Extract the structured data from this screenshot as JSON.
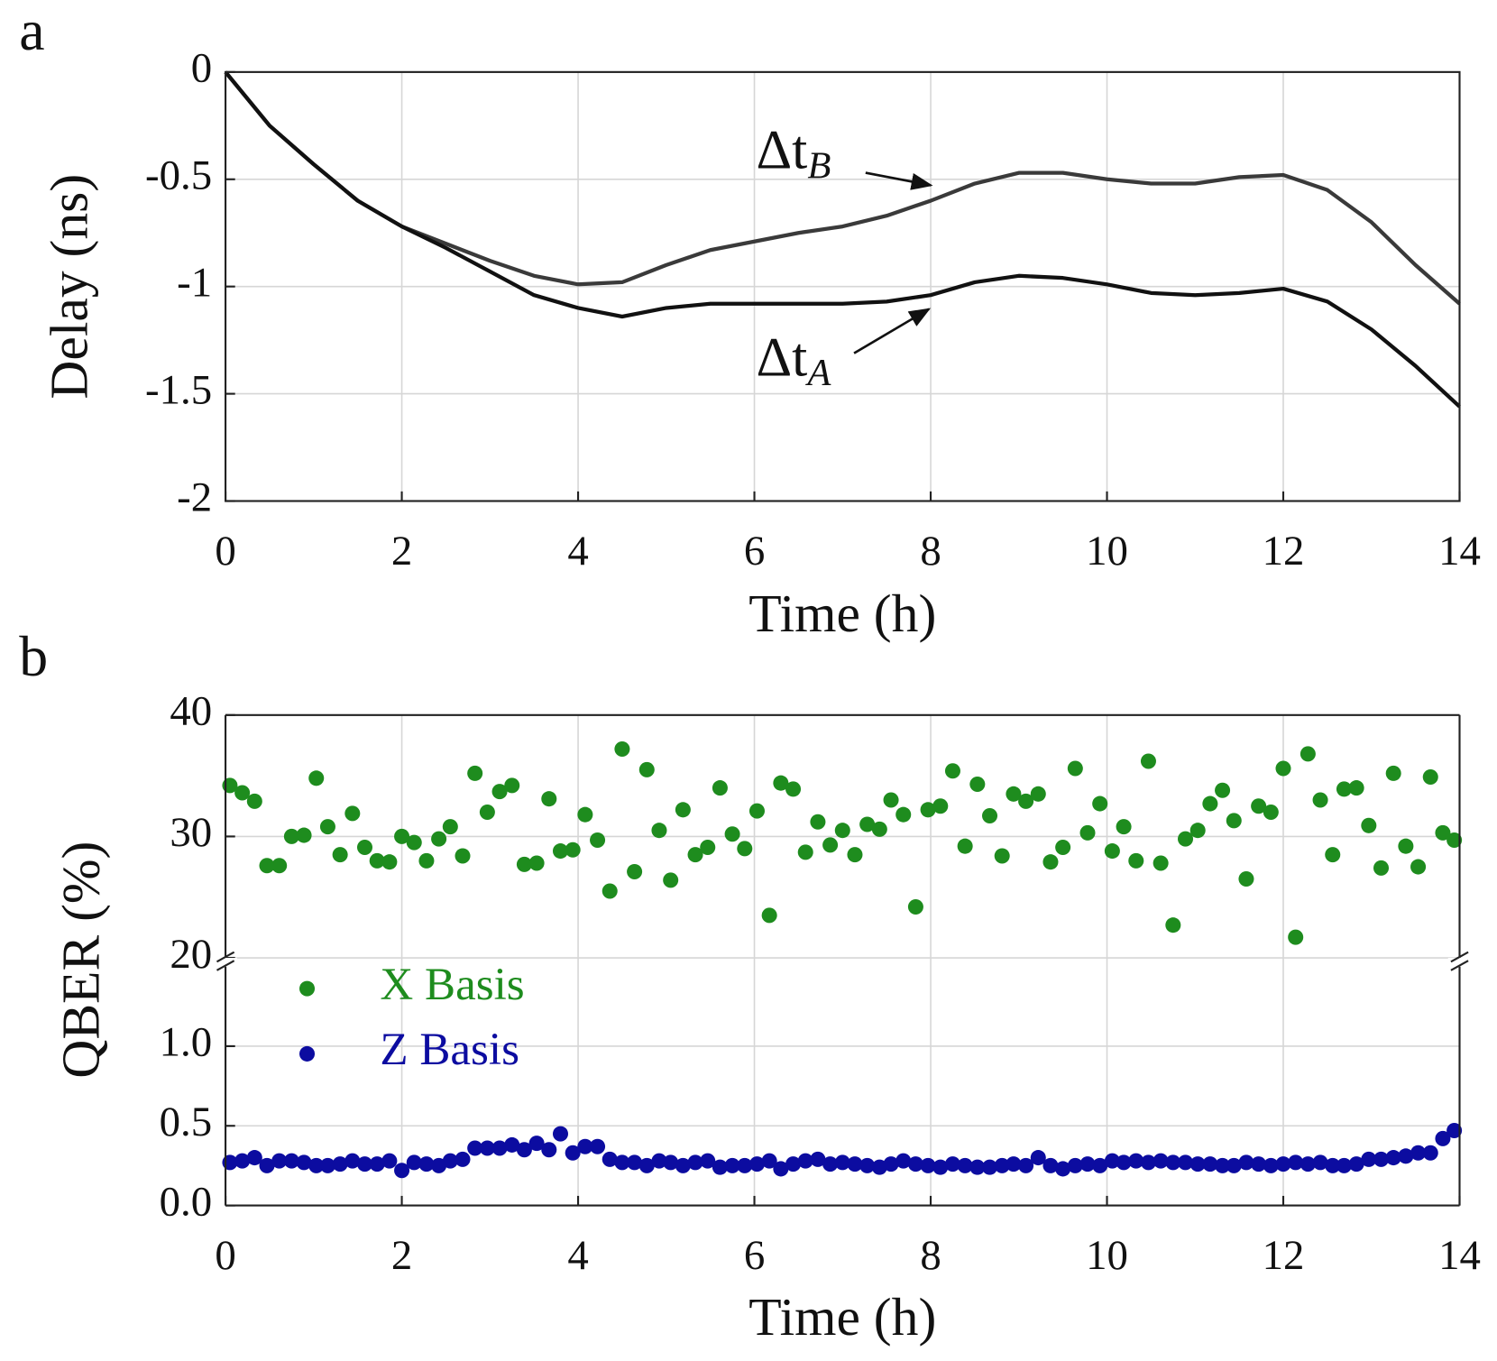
{
  "chart_data": [
    {
      "type": "line",
      "panel_label": "a",
      "xlabel": "Time (h)",
      "ylabel": "Delay (ns)",
      "x": [
        0,
        0.5,
        1,
        1.5,
        2,
        2.5,
        3,
        3.5,
        4,
        4.5,
        5,
        5.5,
        6,
        6.5,
        7,
        7.5,
        8,
        8.5,
        9,
        9.5,
        10,
        10.5,
        11,
        11.5,
        12,
        12.5,
        13,
        13.5,
        14
      ],
      "series": [
        {
          "name": "B",
          "color": "#3a3a3a",
          "values": [
            0,
            -0.25,
            -0.43,
            -0.6,
            -0.72,
            -0.8,
            -0.88,
            -0.95,
            -0.99,
            -0.98,
            -0.9,
            -0.83,
            -0.79,
            -0.75,
            -0.72,
            -0.67,
            -0.6,
            -0.52,
            -0.47,
            -0.47,
            -0.5,
            -0.52,
            -0.52,
            -0.49,
            -0.48,
            -0.55,
            -0.7,
            -0.9,
            -1.08
          ]
        },
        {
          "name": "A",
          "color": "#111111",
          "values": [
            0,
            -0.25,
            -0.43,
            -0.6,
            -0.72,
            -0.82,
            -0.93,
            -1.04,
            -1.1,
            -1.14,
            -1.1,
            -1.08,
            -1.08,
            -1.08,
            -1.08,
            -1.07,
            -1.04,
            -0.98,
            -0.95,
            -0.96,
            -0.99,
            -1.03,
            -1.04,
            -1.03,
            -1.01,
            -1.07,
            -1.2,
            -1.37,
            -1.56
          ]
        }
      ],
      "annotations": [
        {
          "text": "Δt",
          "sub": "B"
        },
        {
          "text": "Δt",
          "sub": "A"
        }
      ],
      "xlim": [
        0,
        14
      ],
      "xticks": [
        0,
        2,
        4,
        6,
        8,
        10,
        12,
        14
      ],
      "ylim": [
        -2,
        0
      ],
      "yticks": [
        0,
        -0.5,
        -1,
        -1.5,
        -2
      ],
      "grid": true
    },
    {
      "type": "scatter",
      "panel_label": "b",
      "xlabel": "Time (h)",
      "ylabel": "QBER (%)",
      "x": [
        0.05,
        0.19,
        0.33,
        0.47,
        0.61,
        0.75,
        0.89,
        1.03,
        1.16,
        1.3,
        1.44,
        1.58,
        1.72,
        1.86,
        2,
        2.14,
        2.28,
        2.42,
        2.55,
        2.69,
        2.83,
        2.97,
        3.11,
        3.25,
        3.39,
        3.53,
        3.67,
        3.8,
        3.94,
        4.08,
        4.22,
        4.36,
        4.5,
        4.64,
        4.78,
        4.92,
        5.05,
        5.19,
        5.33,
        5.47,
        5.61,
        5.75,
        5.89,
        6.03,
        6.17,
        6.3,
        6.44,
        6.58,
        6.72,
        6.86,
        7,
        7.14,
        7.28,
        7.42,
        7.55,
        7.69,
        7.83,
        7.97,
        8.11,
        8.25,
        8.39,
        8.53,
        8.67,
        8.81,
        8.94,
        9.08,
        9.22,
        9.36,
        9.5,
        9.64,
        9.78,
        9.92,
        10.06,
        10.19,
        10.33,
        10.47,
        10.61,
        10.75,
        10.89,
        11.03,
        11.17,
        11.31,
        11.44,
        11.58,
        11.72,
        11.86,
        12,
        12.14,
        12.28,
        12.42,
        12.56,
        12.69,
        12.83,
        12.97,
        13.11,
        13.25,
        13.39,
        13.53,
        13.67,
        13.81,
        13.94
      ],
      "series": [
        {
          "name": "X Basis",
          "color": "#1e8c1e",
          "values": [
            34.2,
            33.6,
            32.9,
            27.6,
            27.6,
            30,
            30.1,
            34.8,
            30.8,
            28.5,
            31.9,
            29.1,
            28,
            27.9,
            30,
            29.5,
            28,
            29.8,
            30.8,
            28.4,
            35.2,
            32,
            33.7,
            34.2,
            27.7,
            27.8,
            33.1,
            28.8,
            28.9,
            31.8,
            29.7,
            25.5,
            37.2,
            27.1,
            35.5,
            30.5,
            26.4,
            32.2,
            28.5,
            29.1,
            34,
            30.2,
            29,
            32.1,
            23.5,
            34.4,
            33.9,
            28.7,
            31.2,
            29.3,
            30.5,
            28.5,
            31,
            30.6,
            33,
            31.8,
            24.2,
            32.2,
            32.5,
            35.4,
            29.2,
            34.3,
            31.7,
            28.4,
            33.5,
            32.9,
            33.5,
            27.9,
            29.1,
            35.6,
            30.3,
            32.7,
            28.8,
            30.8,
            28,
            36.2,
            27.8,
            22.7,
            29.8,
            30.5,
            32.7,
            33.8,
            31.3,
            26.5,
            32.5,
            32,
            35.6,
            21.7,
            36.8,
            33,
            28.5,
            33.9,
            34,
            30.9,
            27.4,
            35.2,
            29.2,
            27.5,
            34.9,
            30.3,
            29.7
          ]
        },
        {
          "name": "Z Basis",
          "color": "#0c0ca0",
          "values": [
            0.27,
            0.28,
            0.3,
            0.25,
            0.28,
            0.28,
            0.27,
            0.25,
            0.25,
            0.26,
            0.28,
            0.26,
            0.26,
            0.28,
            0.22,
            0.27,
            0.26,
            0.25,
            0.28,
            0.29,
            0.36,
            0.36,
            0.36,
            0.38,
            0.35,
            0.39,
            0.35,
            0.45,
            0.33,
            0.37,
            0.37,
            0.29,
            0.27,
            0.27,
            0.25,
            0.28,
            0.27,
            0.25,
            0.27,
            0.28,
            0.24,
            0.25,
            0.25,
            0.26,
            0.28,
            0.23,
            0.26,
            0.28,
            0.29,
            0.26,
            0.27,
            0.26,
            0.25,
            0.24,
            0.26,
            0.28,
            0.26,
            0.25,
            0.24,
            0.26,
            0.25,
            0.24,
            0.24,
            0.25,
            0.26,
            0.25,
            0.3,
            0.25,
            0.23,
            0.25,
            0.26,
            0.25,
            0.28,
            0.27,
            0.28,
            0.27,
            0.28,
            0.27,
            0.27,
            0.26,
            0.26,
            0.25,
            0.25,
            0.27,
            0.26,
            0.25,
            0.26,
            0.27,
            0.26,
            0.27,
            0.25,
            0.25,
            0.26,
            0.29,
            0.29,
            0.3,
            0.31,
            0.33,
            0.33,
            0.42,
            0.47
          ]
        }
      ],
      "xlim": [
        0,
        14
      ],
      "xticks": [
        0,
        2,
        4,
        6,
        8,
        10,
        12,
        14
      ],
      "ylim": [
        0,
        1.5
      ],
      "yticks": [
        {
          "value": 0,
          "label": "0.0"
        },
        0.5,
        {
          "value": 1,
          "label": "1.0"
        }
      ],
      "ylim_upper": [
        20,
        40
      ],
      "yticks_upper": [
        20,
        30,
        40
      ],
      "grid": true
    }
  ]
}
